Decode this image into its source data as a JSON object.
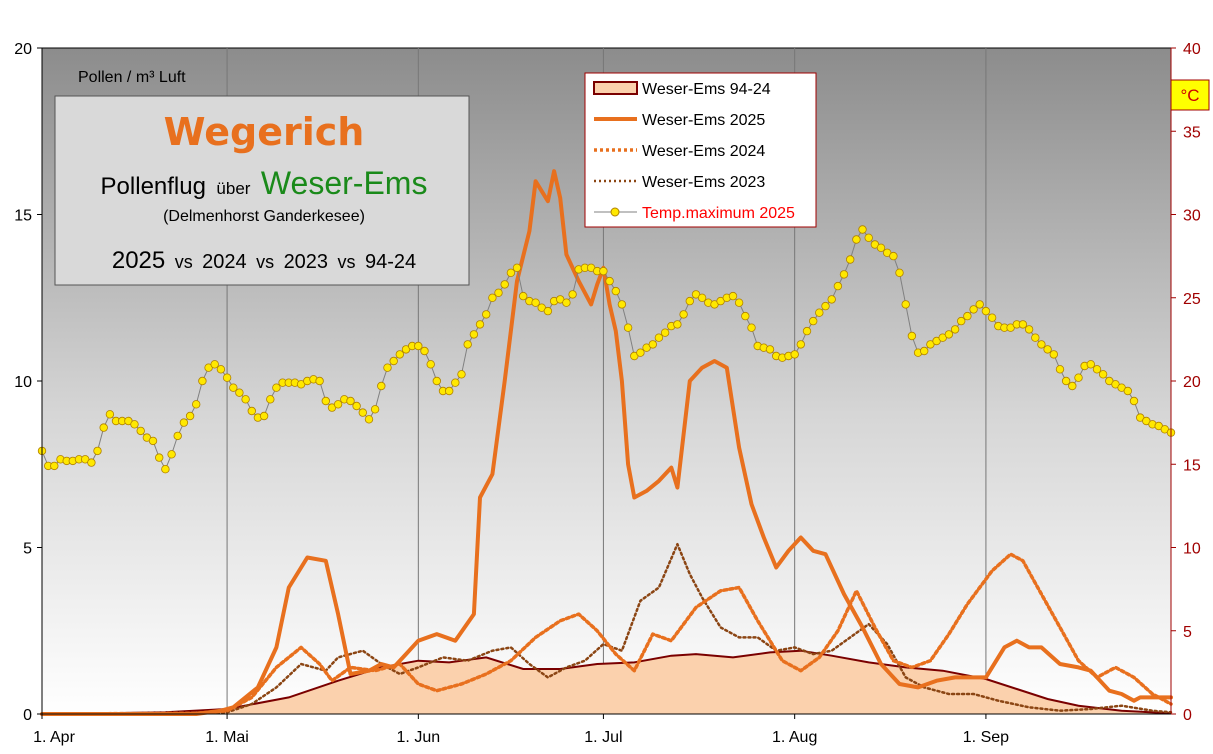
{
  "chart_data": {
    "type": "line",
    "y_axis_label": "Pollen / m³ Luft",
    "y2_unit": "°C",
    "ylim": [
      0,
      20
    ],
    "y2lim": [
      0,
      40
    ],
    "yticks": [
      "0",
      "5",
      "10",
      "15",
      "20"
    ],
    "y2ticks": [
      "0",
      "5",
      "10",
      "15",
      "20",
      "25",
      "30",
      "35",
      "40"
    ],
    "xlim": [
      0,
      183
    ],
    "xticks": [
      {
        "day": 0,
        "label": "1. Apr"
      },
      {
        "day": 30,
        "label": "1. Mai"
      },
      {
        "day": 61,
        "label": "1. Jun"
      },
      {
        "day": 91,
        "label": "1. Jul"
      },
      {
        "day": 122,
        "label": "1. Aug"
      },
      {
        "day": 153,
        "label": "1. Sep"
      }
    ],
    "title_box": {
      "title": "Wegerich",
      "line2_a": "Pollenflug",
      "line2_b": "über",
      "line2_c": "Weser-Ems",
      "line3": "(Delmenhorst Ganderkesee)",
      "line4_parts": [
        "2025",
        "vs",
        "2024",
        "vs",
        "2023",
        "vs",
        "94-24"
      ]
    },
    "legend": [
      {
        "label": "Weser-Ems 94-24",
        "style": "area"
      },
      {
        "label": "Weser-Ems  2025",
        "style": "thick"
      },
      {
        "label": "Weser-Ems  2024",
        "style": "dotted"
      },
      {
        "label": "Weser-Ems  2023",
        "style": "dotted-dark"
      },
      {
        "label": "Temp.maximum 2025",
        "style": "markers"
      }
    ],
    "colors": {
      "s2025": "#e8701e",
      "s2024": "#e8701e",
      "s2023": "#8b4513",
      "area_fill": "#fbd1ad",
      "area_line": "#7a0000",
      "temp_marker": "#ffe800",
      "temp_line": "#808080",
      "title": "#e8701e",
      "weser_ems": "#1a8a1a",
      "temp_label": "#ff0000"
    },
    "series": {
      "avg_94_24": [
        [
          0,
          0
        ],
        [
          20,
          0.05
        ],
        [
          30,
          0.15
        ],
        [
          40,
          0.5
        ],
        [
          48,
          1.0
        ],
        [
          55,
          1.4
        ],
        [
          61,
          1.6
        ],
        [
          66,
          1.55
        ],
        [
          72,
          1.7
        ],
        [
          78,
          1.35
        ],
        [
          84,
          1.35
        ],
        [
          90,
          1.5
        ],
        [
          96,
          1.55
        ],
        [
          102,
          1.75
        ],
        [
          106,
          1.8
        ],
        [
          112,
          1.7
        ],
        [
          118,
          1.85
        ],
        [
          123,
          1.9
        ],
        [
          128,
          1.75
        ],
        [
          134,
          1.55
        ],
        [
          140,
          1.4
        ],
        [
          146,
          1.3
        ],
        [
          153,
          1.05
        ],
        [
          158,
          0.75
        ],
        [
          163,
          0.45
        ],
        [
          168,
          0.25
        ],
        [
          175,
          0.1
        ],
        [
          183,
          0.02
        ]
      ],
      "s2025": [
        [
          0,
          0
        ],
        [
          25,
          0
        ],
        [
          29,
          0.1
        ],
        [
          31,
          0.2
        ],
        [
          35,
          0.8
        ],
        [
          38,
          2.0
        ],
        [
          40,
          3.8
        ],
        [
          43,
          4.7
        ],
        [
          46,
          4.6
        ],
        [
          48,
          3.0
        ],
        [
          50,
          1.2
        ],
        [
          53,
          1.3
        ],
        [
          55,
          1.5
        ],
        [
          57,
          1.4
        ],
        [
          59,
          1.8
        ],
        [
          61,
          2.2
        ],
        [
          64,
          2.4
        ],
        [
          67,
          2.2
        ],
        [
          70,
          3.0
        ],
        [
          71,
          6.5
        ],
        [
          73,
          7.2
        ],
        [
          75,
          10.0
        ],
        [
          77,
          13.0
        ],
        [
          79,
          14.5
        ],
        [
          80,
          16.0
        ],
        [
          82,
          15.4
        ],
        [
          83,
          16.3
        ],
        [
          84,
          15.5
        ],
        [
          85,
          13.8
        ],
        [
          87,
          13.0
        ],
        [
          89,
          12.3
        ],
        [
          90,
          12.9
        ],
        [
          91,
          13.4
        ],
        [
          92,
          12.3
        ],
        [
          93,
          11.5
        ],
        [
          94,
          10.0
        ],
        [
          95,
          7.5
        ],
        [
          96,
          6.5
        ],
        [
          98,
          6.7
        ],
        [
          100,
          7.0
        ],
        [
          102,
          7.4
        ],
        [
          103,
          6.8
        ],
        [
          105,
          10.0
        ],
        [
          107,
          10.4
        ],
        [
          109,
          10.6
        ],
        [
          111,
          10.4
        ],
        [
          113,
          8.0
        ],
        [
          115,
          6.3
        ],
        [
          117,
          5.3
        ],
        [
          119,
          4.4
        ],
        [
          121,
          4.9
        ],
        [
          123,
          5.3
        ],
        [
          125,
          4.9
        ],
        [
          127,
          4.8
        ],
        [
          130,
          3.6
        ],
        [
          133,
          2.6
        ],
        [
          136,
          1.5
        ],
        [
          139,
          0.9
        ],
        [
          142,
          0.8
        ],
        [
          145,
          1.0
        ],
        [
          148,
          1.1
        ],
        [
          151,
          1.1
        ],
        [
          153,
          1.1
        ],
        [
          156,
          2.0
        ],
        [
          158,
          2.2
        ],
        [
          160,
          2.0
        ],
        [
          162,
          2.0
        ],
        [
          165,
          1.5
        ],
        [
          168,
          1.4
        ],
        [
          170,
          1.3
        ],
        [
          173,
          0.7
        ],
        [
          175,
          0.6
        ],
        [
          177,
          0.4
        ],
        [
          178,
          0.5
        ],
        [
          180,
          0.5
        ],
        [
          183,
          0.5
        ]
      ],
      "s2024": [
        [
          0,
          0
        ],
        [
          25,
          0.02
        ],
        [
          30,
          0.1
        ],
        [
          34,
          0.5
        ],
        [
          38,
          1.4
        ],
        [
          42,
          2.0
        ],
        [
          45,
          1.5
        ],
        [
          47,
          1.0
        ],
        [
          50,
          1.4
        ],
        [
          54,
          1.3
        ],
        [
          58,
          1.5
        ],
        [
          61,
          0.9
        ],
        [
          64,
          0.7
        ],
        [
          68,
          0.9
        ],
        [
          72,
          1.2
        ],
        [
          76,
          1.6
        ],
        [
          80,
          2.3
        ],
        [
          84,
          2.8
        ],
        [
          87,
          3.0
        ],
        [
          90,
          2.5
        ],
        [
          93,
          1.8
        ],
        [
          96,
          1.3
        ],
        [
          99,
          2.4
        ],
        [
          102,
          2.2
        ],
        [
          106,
          3.2
        ],
        [
          110,
          3.7
        ],
        [
          113,
          3.8
        ],
        [
          116,
          2.8
        ],
        [
          120,
          1.6
        ],
        [
          123,
          1.3
        ],
        [
          126,
          1.7
        ],
        [
          129,
          2.5
        ],
        [
          132,
          3.7
        ],
        [
          135,
          2.6
        ],
        [
          138,
          1.6
        ],
        [
          141,
          1.4
        ],
        [
          144,
          1.6
        ],
        [
          147,
          2.4
        ],
        [
          150,
          3.3
        ],
        [
          154,
          4.3
        ],
        [
          157,
          4.8
        ],
        [
          159,
          4.6
        ],
        [
          162,
          3.6
        ],
        [
          165,
          2.6
        ],
        [
          168,
          1.6
        ],
        [
          171,
          1.1
        ],
        [
          174,
          1.4
        ],
        [
          177,
          1.1
        ],
        [
          180,
          0.6
        ],
        [
          183,
          0.3
        ]
      ],
      "s2023": [
        [
          0,
          0
        ],
        [
          25,
          0.02
        ],
        [
          30,
          0.05
        ],
        [
          34,
          0.3
        ],
        [
          38,
          0.8
        ],
        [
          42,
          1.5
        ],
        [
          46,
          1.3
        ],
        [
          48,
          1.7
        ],
        [
          52,
          1.9
        ],
        [
          55,
          1.5
        ],
        [
          58,
          1.2
        ],
        [
          61,
          1.4
        ],
        [
          65,
          1.7
        ],
        [
          69,
          1.6
        ],
        [
          73,
          1.9
        ],
        [
          76,
          2.0
        ],
        [
          79,
          1.5
        ],
        [
          82,
          1.1
        ],
        [
          85,
          1.4
        ],
        [
          88,
          1.6
        ],
        [
          91,
          2.1
        ],
        [
          94,
          1.9
        ],
        [
          97,
          3.4
        ],
        [
          100,
          3.8
        ],
        [
          103,
          5.1
        ],
        [
          105,
          4.2
        ],
        [
          107,
          3.5
        ],
        [
          110,
          2.6
        ],
        [
          113,
          2.3
        ],
        [
          116,
          2.3
        ],
        [
          119,
          1.9
        ],
        [
          122,
          2.0
        ],
        [
          125,
          1.8
        ],
        [
          128,
          1.9
        ],
        [
          131,
          2.3
        ],
        [
          134,
          2.7
        ],
        [
          137,
          2.1
        ],
        [
          140,
          1.1
        ],
        [
          143,
          0.8
        ],
        [
          147,
          0.6
        ],
        [
          151,
          0.6
        ],
        [
          155,
          0.4
        ],
        [
          160,
          0.2
        ],
        [
          165,
          0.1
        ],
        [
          170,
          0.15
        ],
        [
          175,
          0.25
        ],
        [
          180,
          0.1
        ],
        [
          183,
          0.05
        ]
      ],
      "temp_max_2025": [
        15.8,
        14.9,
        14.9,
        15.3,
        15.2,
        15.2,
        15.3,
        15.3,
        15.1,
        15.8,
        17.2,
        18.0,
        17.6,
        17.6,
        17.6,
        17.4,
        17.0,
        16.6,
        16.4,
        15.4,
        14.7,
        15.6,
        16.7,
        17.5,
        17.9,
        18.6,
        20.0,
        20.8,
        21.0,
        20.7,
        20.2,
        19.6,
        19.3,
        18.9,
        18.2,
        17.8,
        17.9,
        18.9,
        19.6,
        19.9,
        19.9,
        19.9,
        19.8,
        20.0,
        20.1,
        20.0,
        18.8,
        18.4,
        18.6,
        18.9,
        18.8,
        18.5,
        18.1,
        17.7,
        18.3,
        19.7,
        20.8,
        21.2,
        21.6,
        21.9,
        22.1,
        22.1,
        21.8,
        21.0,
        20.0,
        19.4,
        19.4,
        19.9,
        20.4,
        22.2,
        22.8,
        23.4,
        24.0,
        25.0,
        25.3,
        25.8,
        26.5,
        26.8,
        25.1,
        24.8,
        24.7,
        24.4,
        24.2,
        24.8,
        24.9,
        24.7,
        25.2,
        26.7,
        26.8,
        26.8,
        26.6,
        26.6,
        26.0,
        25.4,
        24.6,
        23.2,
        21.5,
        21.7,
        22.0,
        22.2,
        22.6,
        22.9,
        23.3,
        23.4,
        24.0,
        24.8,
        25.2,
        25.0,
        24.7,
        24.6,
        24.8,
        25.0,
        25.1,
        24.7,
        23.9,
        23.2,
        22.1,
        22.0,
        21.9,
        21.5,
        21.4,
        21.5,
        21.6,
        22.2,
        23.0,
        23.6,
        24.1,
        24.5,
        24.9,
        25.7,
        26.4,
        27.3,
        28.5,
        29.1,
        28.6,
        28.2,
        28.0,
        27.7,
        27.5,
        26.5,
        24.6,
        22.7,
        21.7,
        21.8,
        22.2,
        22.4,
        22.6,
        22.8,
        23.1,
        23.6,
        23.9,
        24.3,
        24.6,
        24.2,
        23.8,
        23.3,
        23.2,
        23.2,
        23.4,
        23.4,
        23.1,
        22.6,
        22.2,
        21.9,
        21.6,
        20.7,
        20.0,
        19.7,
        20.2,
        20.9,
        21.0,
        20.7,
        20.4,
        20.0,
        19.8,
        19.6,
        19.4,
        18.8,
        17.8,
        17.6,
        17.4,
        17.3,
        17.1,
        16.9
      ]
    }
  }
}
